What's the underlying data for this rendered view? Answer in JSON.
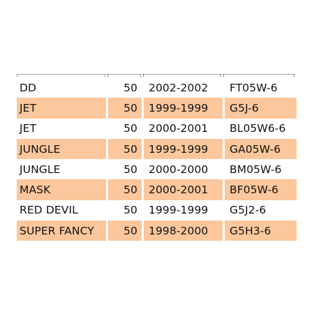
{
  "table": {
    "rows": [
      {
        "name": "DD",
        "qty": "50",
        "years": "2002-2002",
        "code": "FT05W-6",
        "highlight": false
      },
      {
        "name": "JET",
        "qty": "50",
        "years": "1999-1999",
        "code": "G5J-6",
        "highlight": true
      },
      {
        "name": "JET",
        "qty": "50",
        "years": "2000-2001",
        "code": "BL05W6-6",
        "highlight": false
      },
      {
        "name": "JUNGLE",
        "qty": "50",
        "years": "1999-1999",
        "code": "GA05W-6",
        "highlight": true
      },
      {
        "name": "JUNGLE",
        "qty": "50",
        "years": "2000-2000",
        "code": "BM05W-6",
        "highlight": false
      },
      {
        "name": "MASK",
        "qty": "50",
        "years": "2000-2001",
        "code": "BF05W-6",
        "highlight": true
      },
      {
        "name": "RED DEVIL",
        "qty": "50",
        "years": "1999-1999",
        "code": "G5J2-6",
        "highlight": false
      },
      {
        "name": "SUPER FANCY",
        "qty": "50",
        "years": "1998-2000",
        "code": "G5H3-6",
        "highlight": true
      }
    ]
  },
  "colors": {
    "highlight_row": "#fcc79c",
    "background": "#ffffff",
    "text": "#111111"
  }
}
